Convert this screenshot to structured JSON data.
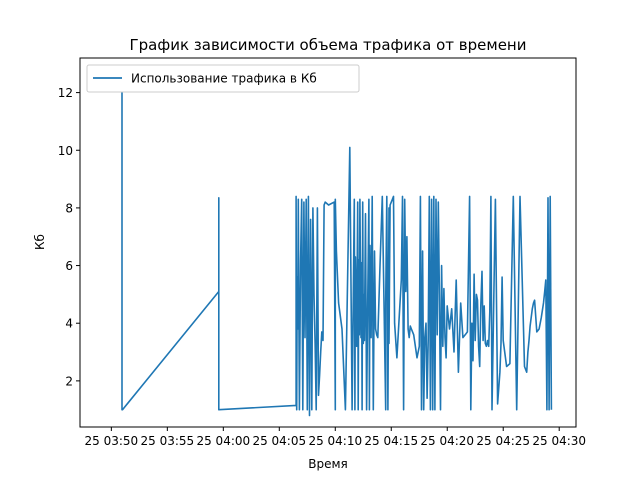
{
  "chart_data": {
    "type": "line",
    "title": "График зависимости объема трафика от времени",
    "xlabel": "Время",
    "ylabel": "Кб",
    "x_tick_labels": [
      "25 03:50",
      "25 03:55",
      "25 04:00",
      "25 04:05",
      "25 04:10",
      "25 04:15",
      "25 04:20",
      "25 04:25",
      "25 04:30"
    ],
    "x_ticks_minutes": [
      0,
      5,
      10,
      15,
      20,
      25,
      30,
      35,
      40
    ],
    "xlim_minutes": [
      -2.8,
      41.5
    ],
    "y_ticks": [
      2,
      4,
      6,
      8,
      10,
      12
    ],
    "ylim": [
      0.4,
      13.2
    ],
    "grid": false,
    "legend_position": "top-left",
    "series": [
      {
        "name": "Использование трафика в Кб",
        "color": "#1f77b4",
        "x_minutes": [
          0.95,
          0.95,
          0.95,
          1.0,
          9.6,
          9.6,
          9.6,
          9.6,
          16.5,
          16.5,
          16.55,
          16.6,
          16.65,
          16.7,
          16.8,
          16.9,
          17.0,
          17.1,
          17.2,
          17.3,
          17.4,
          17.5,
          17.6,
          17.7,
          17.8,
          17.9,
          18.0,
          18.1,
          18.2,
          18.3,
          18.4,
          18.5,
          18.6,
          18.7,
          18.8,
          18.9,
          19.0,
          19.1,
          19.4,
          19.9,
          20.0,
          20.0,
          20.1,
          20.3,
          20.6,
          20.9,
          21.3,
          21.5,
          21.7,
          21.75,
          21.8,
          21.9,
          22.0,
          22.05,
          22.1,
          22.15,
          22.2,
          22.3,
          22.35,
          22.4,
          22.45,
          22.5,
          22.55,
          22.6,
          22.7,
          22.8,
          22.9,
          23.0,
          23.05,
          23.1,
          23.2,
          23.3,
          23.4,
          23.5,
          23.6,
          23.7,
          23.8,
          24.0,
          24.2,
          24.5,
          24.5,
          24.6,
          24.7,
          24.8,
          24.8,
          24.9,
          25.0,
          25.1,
          25.2,
          25.3,
          25.5,
          25.9,
          26.0,
          26.1,
          26.2,
          26.3,
          26.4,
          26.5,
          26.6,
          26.7,
          26.8,
          27.0,
          27.3,
          27.5,
          27.6,
          27.7,
          27.8,
          27.9,
          28.0,
          28.1,
          28.2,
          28.3,
          28.4,
          28.5,
          28.6,
          28.7,
          28.8,
          28.9,
          29.0,
          29.1,
          29.2,
          29.3,
          29.4,
          29.5,
          29.6,
          29.7,
          29.8,
          29.9,
          30.0,
          30.2,
          30.4,
          30.6,
          30.8,
          31.0,
          31.2,
          31.4,
          31.6,
          31.8,
          32.0,
          32.1,
          32.2,
          32.3,
          32.4,
          32.5,
          32.6,
          32.7,
          32.8,
          32.9,
          33.0,
          33.1,
          33.2,
          33.3,
          33.4,
          33.5,
          33.6,
          33.7,
          33.8,
          33.9,
          34.0,
          34.3,
          34.5,
          34.7,
          34.8,
          34.9,
          35.0,
          35.3,
          35.6,
          35.9,
          36.2,
          36.5,
          36.9,
          37.0,
          37.1,
          37.2,
          37.3,
          37.4,
          37.5,
          37.6,
          37.7,
          37.8,
          38.0,
          38.2,
          38.4,
          38.6,
          38.7,
          38.8,
          38.9,
          39.0,
          39.1,
          39.2,
          39.3
        ],
        "y": [
          12.2,
          5.0,
          1.0,
          1.0,
          5.1,
          8.35,
          1.0,
          1.0,
          1.15,
          8.4,
          1.0,
          5.6,
          3.8,
          8.3,
          1.0,
          6.2,
          8.3,
          1.0,
          8.2,
          3.5,
          8.3,
          1.0,
          8.4,
          0.8,
          7.6,
          1.0,
          8.0,
          5.0,
          3.3,
          1.0,
          8.0,
          1.5,
          2.2,
          3.0,
          3.7,
          3.4,
          8.1,
          8.2,
          8.1,
          8.2,
          1.0,
          8.3,
          6.5,
          4.7,
          3.8,
          1.0,
          10.1,
          1.0,
          8.3,
          1.0,
          6.3,
          3.2,
          8.2,
          1.0,
          6.2,
          3.6,
          8.3,
          3.5,
          6.1,
          1.0,
          8.2,
          3.3,
          5.0,
          3.4,
          7.8,
          1.0,
          4.7,
          8.3,
          1.0,
          6.7,
          3.5,
          8.4,
          1.0,
          6.5,
          3.8,
          3.6,
          3.5,
          6.1,
          8.4,
          1.0,
          4.7,
          8.4,
          1.0,
          8.0,
          3.3,
          8.1,
          8.2,
          8.3,
          8.4,
          4.0,
          2.8,
          5.5,
          8.4,
          1.0,
          8.3,
          5.1,
          7.0,
          3.8,
          3.5,
          3.9,
          3.8,
          3.6,
          2.8,
          3.2,
          8.4,
          1.0,
          6.5,
          1.0,
          3.5,
          4.0,
          1.4,
          3.4,
          8.4,
          1.0,
          8.3,
          1.0,
          8.4,
          1.0,
          8.3,
          3.6,
          8.2,
          5.0,
          1.0,
          6.0,
          3.2,
          5.2,
          3.5,
          2.8,
          4.6,
          3.8,
          4.5,
          3.0,
          5.5,
          2.3,
          4.7,
          3.5,
          3.6,
          3.7,
          8.4,
          1.0,
          4.0,
          2.7,
          5.7,
          3.4,
          5.0,
          4.8,
          3.2,
          2.5,
          4.6,
          5.8,
          3.4,
          4.6,
          3.3,
          3.2,
          3.4,
          3.2,
          4.4,
          8.4,
          1.0,
          8.3,
          1.2,
          2.3,
          3.3,
          5.6,
          3.4,
          2.5,
          2.6,
          8.4,
          1.0,
          8.4,
          2.5,
          2.4,
          2.3,
          3.0,
          3.4,
          3.9,
          4.2,
          4.5,
          4.7,
          4.8,
          3.7,
          3.8,
          4.2,
          4.7,
          5.1,
          5.5,
          1.0,
          8.35,
          1.0,
          8.4,
          1.0
        ]
      }
    ]
  }
}
